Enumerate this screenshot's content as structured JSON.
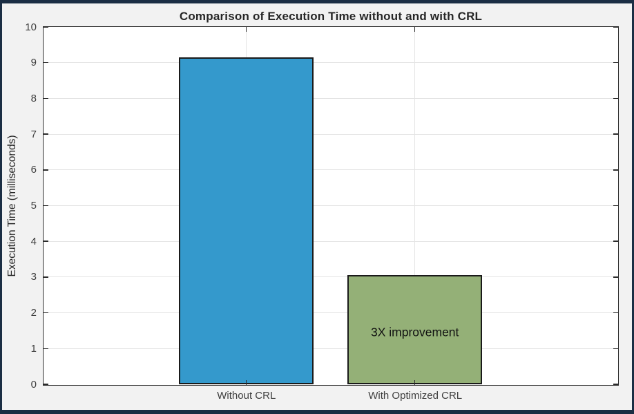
{
  "frame": {
    "border_color": "#1B2E44",
    "figure_background": "#F2F2F2"
  },
  "chart_data": {
    "type": "bar",
    "title": "Comparison of Execution Time without and with CRL",
    "xlabel": "",
    "ylabel": "Execution Time (milliseconds)",
    "categories": [
      "Without CRL",
      "With Optimized CRL"
    ],
    "values": [
      9.15,
      3.05
    ],
    "positions": [
      1,
      2
    ],
    "bar_width": 0.8,
    "bar_colors": [
      "#3499CC",
      "#94B077"
    ],
    "bar_edge_color": "#1A1A1A",
    "xlim": [
      -0.2,
      3.2
    ],
    "ylim": [
      0,
      10
    ],
    "yticks": [
      0,
      1,
      2,
      3,
      4,
      5,
      6,
      7,
      8,
      9,
      10
    ],
    "grid": true,
    "legend": null,
    "plot_background": "#FFFFFF",
    "grid_color": "#E4E4E4",
    "axis_color": "#2B2B2B",
    "text_color": "#262626",
    "tick_label_color": "#3D3D3D",
    "annotation": {
      "text": "3X improvement",
      "x": 2,
      "y": 1.45,
      "color": "#111111"
    }
  }
}
